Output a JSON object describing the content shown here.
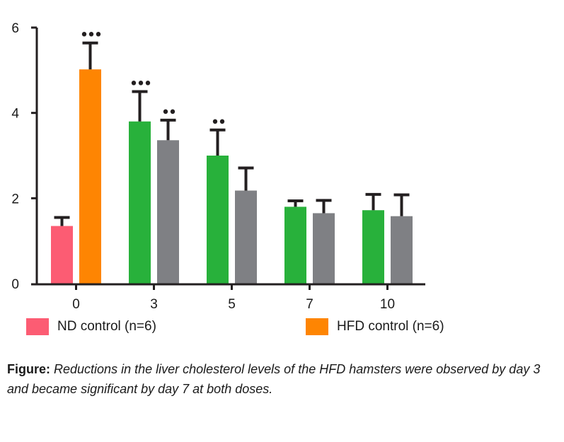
{
  "chart_data": {
    "type": "bar",
    "title": "",
    "xlabel": "",
    "ylabel": "",
    "ylim": [
      0,
      6
    ],
    "yticks": [
      "0",
      "2",
      "4",
      "6"
    ],
    "categories": [
      "0",
      "3",
      "5",
      "7",
      "10"
    ],
    "bars": [
      {
        "category": "0",
        "slot": 0,
        "value": 1.35,
        "error": 0.2,
        "color": "#fc5c73",
        "sig": ""
      },
      {
        "category": "0",
        "slot": 1,
        "value": 5.02,
        "error": 0.62,
        "color": "#fe8502",
        "sig": "•••"
      },
      {
        "category": "3",
        "slot": 0,
        "value": 3.8,
        "error": 0.7,
        "color": "#28b13b",
        "sig": "•••"
      },
      {
        "category": "3",
        "slot": 1,
        "value": 3.36,
        "error": 0.47,
        "color": "#7f8084",
        "sig": "••"
      },
      {
        "category": "5",
        "slot": 0,
        "value": 3.0,
        "error": 0.6,
        "color": "#28b13b",
        "sig": "••"
      },
      {
        "category": "5",
        "slot": 1,
        "value": 2.18,
        "error": 0.53,
        "color": "#7f8084",
        "sig": ""
      },
      {
        "category": "7",
        "slot": 0,
        "value": 1.8,
        "error": 0.14,
        "color": "#28b13b",
        "sig": ""
      },
      {
        "category": "7",
        "slot": 1,
        "value": 1.65,
        "error": 0.3,
        "color": "#7f8084",
        "sig": ""
      },
      {
        "category": "10",
        "slot": 0,
        "value": 1.72,
        "error": 0.37,
        "color": "#28b13b",
        "sig": ""
      },
      {
        "category": "10",
        "slot": 1,
        "value": 1.58,
        "error": 0.5,
        "color": "#7f8084",
        "sig": ""
      }
    ],
    "legend": [
      {
        "label": "ND control (n=6)",
        "color": "#fc5c73"
      },
      {
        "label": "HFD control (n=6)",
        "color": "#fe8502"
      }
    ]
  },
  "caption": {
    "lead": "Figure:",
    "body": "Reductions in the liver cholesterol levels of the HFD hamsters were observed by day 3 and became significant by day 7 at both doses."
  }
}
